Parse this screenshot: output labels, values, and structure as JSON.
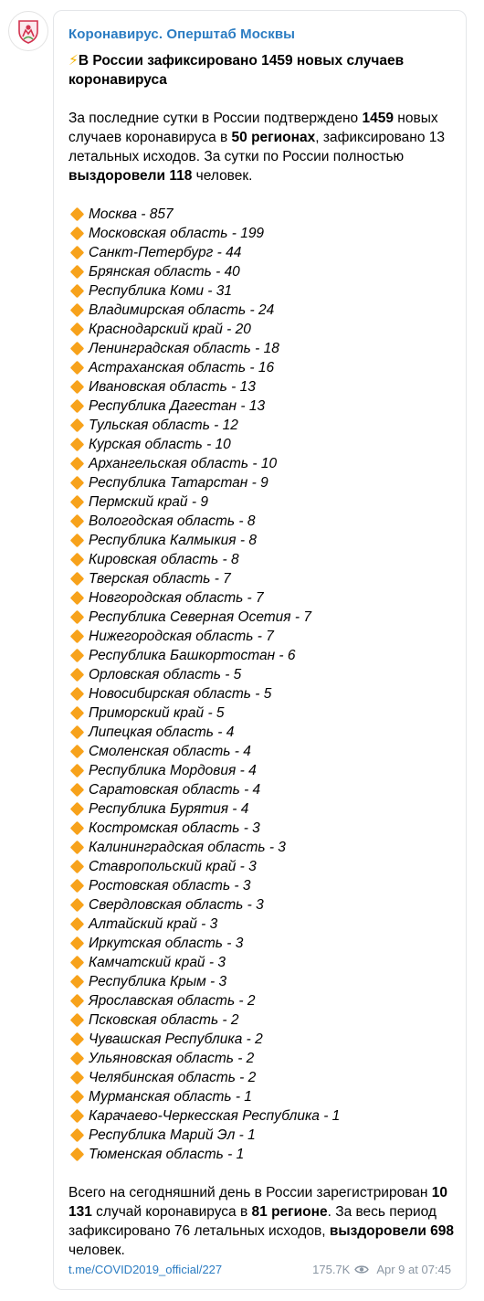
{
  "channel": {
    "name": "Коронавирус. Оперштаб Москвы"
  },
  "post": {
    "headline": "В России зафиксировано 1459 новых случаев коронавируса",
    "intro": {
      "t1": "За последние сутки в России подтверждено ",
      "b1": "1459",
      "t2": " новых случаев коронавируса в ",
      "b2": "50 регионах",
      "t3": ", зафиксировано 13 летальных исходов. За сутки по России полностью ",
      "b3": "выздоровели 118",
      "t4": " человек."
    },
    "regions": [
      "Москва - 857",
      "Московская область - 199",
      "Санкт-Петербург - 44",
      "Брянская область - 40",
      "Республика Коми - 31",
      "Владимирская область - 24",
      "Краснодарский край - 20",
      "Ленинградская область - 18",
      "Астраханская область - 16",
      "Ивановская область - 13",
      "Республика Дагестан - 13",
      "Тульская область - 12",
      "Курская область - 10",
      "Архангельская область - 10",
      "Республика Татарстан - 9",
      "Пермский край - 9",
      "Вологодская область - 8",
      "Республика Калмыкия - 8",
      "Кировская область - 8",
      "Тверская область - 7",
      "Новгородская область - 7",
      "Республика Северная Осетия - 7",
      "Нижегородская область - 7",
      "Республика Башкортостан - 6",
      "Орловская область - 5",
      "Новосибирская область - 5",
      "Приморский край - 5",
      "Липецкая область - 4",
      "Смоленская область - 4",
      "Республика Мордовия - 4",
      "Саратовская область - 4",
      "Республика Бурятия - 4",
      "Костромская область - 3",
      "Калининградская область - 3",
      "Ставропольский край - 3",
      "Ростовская область - 3",
      "Свердловская область - 3",
      "Алтайский край - 3",
      "Иркутская область - 3",
      "Камчатский край - 3",
      "Республика Крым - 3",
      "Ярославская область - 2",
      "Псковская область - 2",
      "Чувашская Республика - 2",
      "Ульяновская область - 2",
      "Челябинская область - 2",
      "Мурманская область - 1",
      "Карачаево-Черкесская Республика - 1",
      "Республика Марий Эл - 1",
      "Тюменская область - 1"
    ],
    "summary": {
      "t1": "Всего на сегодняшний день в России зарегистрирован ",
      "b1": "10 131",
      "t2": " случай коронавируса в ",
      "b2": "81 регионе",
      "t3": ". За весь период зафиксировано 76 летальных исходов, ",
      "b3": "выздоровели 698",
      "t4": " человек."
    }
  },
  "footer": {
    "link": "t.me/COVID2019_official/227",
    "views": "175.7K",
    "date": "Apr 9 at 07:45"
  },
  "colors": {
    "accent": "#2b7cc2",
    "muted": "#8a96a3",
    "bullet": "#f7a21b",
    "bolt": "#f5b400"
  },
  "icons": {
    "bullet": "orange-diamond-icon",
    "headline": "lightning-bolt-icon",
    "views": "eye-icon"
  }
}
